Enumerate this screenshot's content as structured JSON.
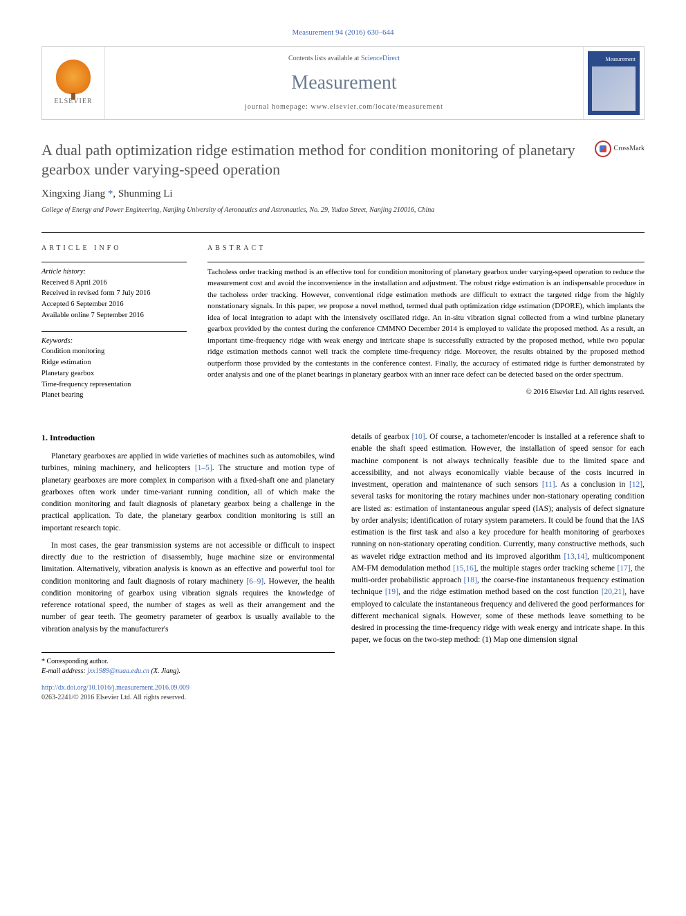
{
  "citation": "Measurement 94 (2016) 630–644",
  "header": {
    "contents_prefix": "Contents lists available at ",
    "contents_link": "ScienceDirect",
    "journal": "Measurement",
    "homepage_prefix": "journal homepage: ",
    "homepage_url": "www.elsevier.com/locate/measurement",
    "elsevier_label": "ELSEVIER",
    "cover_title": "Measurement"
  },
  "crossmark": "CrossMark",
  "title": "A dual path optimization ridge estimation method for condition monitoring of planetary gearbox under varying-speed operation",
  "authors": "Xingxing Jiang *, Shunming Li",
  "affiliation": "College of Energy and Power Engineering, Nanjing University of Aeronautics and Astronautics, No. 29, Yudao Street, Nanjing 210016, China",
  "info_heading": "ARTICLE INFO",
  "abstract_heading": "ABSTRACT",
  "history": {
    "label": "Article history:",
    "received": "Received 8 April 2016",
    "revised": "Received in revised form 7 July 2016",
    "accepted": "Accepted 6 September 2016",
    "online": "Available online 7 September 2016"
  },
  "keywords": {
    "label": "Keywords:",
    "items": [
      "Condition monitoring",
      "Ridge estimation",
      "Planetary gearbox",
      "Time-frequency representation",
      "Planet bearing"
    ]
  },
  "abstract": "Tacholess order tracking method is an effective tool for condition monitoring of planetary gearbox under varying-speed operation to reduce the measurement cost and avoid the inconvenience in the installation and adjustment. The robust ridge estimation is an indispensable procedure in the tacholess order tracking. However, conventional ridge estimation methods are difficult to extract the targeted ridge from the highly nonstationary signals. In this paper, we propose a novel method, termed dual path optimization ridge estimation (DPORE), which implants the idea of local integration to adapt with the intensively oscillated ridge. An in-situ vibration signal collected from a wind turbine planetary gearbox provided by the contest during the conference CMMNO December 2014 is employed to validate the proposed method. As a result, an important time-frequency ridge with weak energy and intricate shape is successfully extracted by the proposed method, while two popular ridge estimation methods cannot well track the complete time-frequency ridge. Moreover, the results obtained by the proposed method outperform those provided by the contestants in the conference contest. Finally, the accuracy of estimated ridge is further demonstrated by order analysis and one of the planet bearings in planetary gearbox with an inner race defect can be detected based on the order spectrum.",
  "copyright": "© 2016 Elsevier Ltd. All rights reserved.",
  "section1_heading": "1. Introduction",
  "col1": {
    "p1a": "Planetary gearboxes are applied in wide varieties of machines such as automobiles, wind turbines, mining machinery, and helicopters ",
    "p1_ref1": "[1–5]",
    "p1b": ". The structure and motion type of planetary gearboxes are more complex in comparison with a fixed-shaft one and planetary gearboxes often work under time-variant running condition, all of which make the condition monitoring and fault diagnosis of planetary gearbox being a challenge in the practical application. To date, the planetary gearbox condition monitoring is still an important research topic.",
    "p2a": "In most cases, the gear transmission systems are not accessible or difficult to inspect directly due to the restriction of disassembly, huge machine size or environmental limitation. Alternatively, vibration analysis is known as an effective and powerful tool for condition monitoring and fault diagnosis of rotary machinery ",
    "p2_ref1": "[6–9]",
    "p2b": ". However, the health condition monitoring of gearbox using vibration signals requires the knowledge of reference rotational speed, the number of stages as well as their arrangement and the number of gear teeth. The geometry parameter of gearbox is usually available to the vibration analysis by the manufacturer's"
  },
  "col2": {
    "p1a": "details of gearbox ",
    "p1_ref1": "[10]",
    "p1b": ". Of course, a tachometer/encoder is installed at a reference shaft to enable the shaft speed estimation. However, the installation of speed sensor for each machine component is not always technically feasible due to the limited space and accessibility, and not always economically viable because of the costs incurred in investment, operation and maintenance of such sensors ",
    "p1_ref2": "[11]",
    "p1c": ". As a conclusion in ",
    "p1_ref3": "[12]",
    "p1d": ", several tasks for monitoring the rotary machines under non-stationary operating condition are listed as: estimation of instantaneous angular speed (IAS); analysis of defect signature by order analysis; identification of rotary system parameters. It could be found that the IAS estimation is the first task and also a key procedure for health monitoring of gearboxes running on non-stationary operating condition. Currently, many constructive methods, such as wavelet ridge extraction method and its improved algorithm ",
    "p1_ref4": "[13,14]",
    "p1e": ", multicomponent AM-FM demodulation method ",
    "p1_ref5": "[15,16]",
    "p1f": ", the multiple stages order tracking scheme ",
    "p1_ref6": "[17]",
    "p1g": ", the multi-order probabilistic approach ",
    "p1_ref7": "[18]",
    "p1h": ", the coarse-fine instantaneous frequency estimation technique ",
    "p1_ref8": "[19]",
    "p1i": ", and the ridge estimation method based on the cost function ",
    "p1_ref9": "[20,21]",
    "p1j": ", have employed to calculate the instantaneous frequency and delivered the good performances for different mechanical signals. However, some of these methods leave something to be desired in processing the time-frequency ridge with weak energy and intricate shape. In this paper, we focus on the two-step method: (1) Map one dimension signal"
  },
  "footer": {
    "corresponding": "* Corresponding author.",
    "email_label": "E-mail address: ",
    "email": "jxx1989@nuaa.edu.cn",
    "email_suffix": " (X. Jiang).",
    "doi": "http://dx.doi.org/10.1016/j.measurement.2016.09.009",
    "issn": "0263-2241/© 2016 Elsevier Ltd. All rights reserved."
  }
}
